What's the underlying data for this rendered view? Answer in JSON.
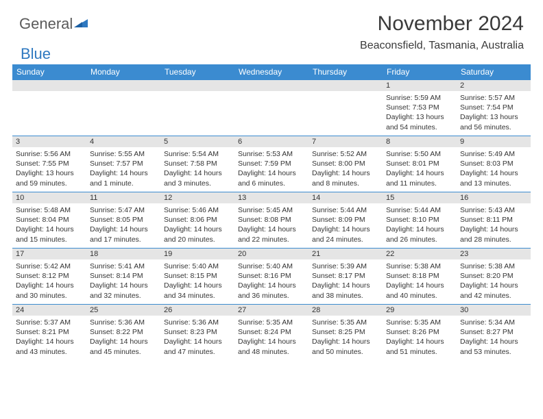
{
  "logo": {
    "text1": "General",
    "text2": "Blue"
  },
  "title": "November 2024",
  "location": "Beaconsfield, Tasmania, Australia",
  "colors": {
    "header_bg": "#3b8bd0",
    "header_text": "#ffffff",
    "daynum_bg": "#e5e5e5",
    "row_divider": "#3b8bd0",
    "body_text": "#333333",
    "logo_gray": "#5a5a5a",
    "logo_blue": "#2e78c0"
  },
  "fonts": {
    "title_size": 30,
    "location_size": 16,
    "header_size": 12,
    "daynum_size": 11,
    "body_size": 10.5
  },
  "weekdays": [
    "Sunday",
    "Monday",
    "Tuesday",
    "Wednesday",
    "Thursday",
    "Friday",
    "Saturday"
  ],
  "weeks": [
    [
      null,
      null,
      null,
      null,
      null,
      {
        "n": "1",
        "sunrise": "Sunrise: 5:59 AM",
        "sunset": "Sunset: 7:53 PM",
        "daylight": "Daylight: 13 hours and 54 minutes."
      },
      {
        "n": "2",
        "sunrise": "Sunrise: 5:57 AM",
        "sunset": "Sunset: 7:54 PM",
        "daylight": "Daylight: 13 hours and 56 minutes."
      }
    ],
    [
      {
        "n": "3",
        "sunrise": "Sunrise: 5:56 AM",
        "sunset": "Sunset: 7:55 PM",
        "daylight": "Daylight: 13 hours and 59 minutes."
      },
      {
        "n": "4",
        "sunrise": "Sunrise: 5:55 AM",
        "sunset": "Sunset: 7:57 PM",
        "daylight": "Daylight: 14 hours and 1 minute."
      },
      {
        "n": "5",
        "sunrise": "Sunrise: 5:54 AM",
        "sunset": "Sunset: 7:58 PM",
        "daylight": "Daylight: 14 hours and 3 minutes."
      },
      {
        "n": "6",
        "sunrise": "Sunrise: 5:53 AM",
        "sunset": "Sunset: 7:59 PM",
        "daylight": "Daylight: 14 hours and 6 minutes."
      },
      {
        "n": "7",
        "sunrise": "Sunrise: 5:52 AM",
        "sunset": "Sunset: 8:00 PM",
        "daylight": "Daylight: 14 hours and 8 minutes."
      },
      {
        "n": "8",
        "sunrise": "Sunrise: 5:50 AM",
        "sunset": "Sunset: 8:01 PM",
        "daylight": "Daylight: 14 hours and 11 minutes."
      },
      {
        "n": "9",
        "sunrise": "Sunrise: 5:49 AM",
        "sunset": "Sunset: 8:03 PM",
        "daylight": "Daylight: 14 hours and 13 minutes."
      }
    ],
    [
      {
        "n": "10",
        "sunrise": "Sunrise: 5:48 AM",
        "sunset": "Sunset: 8:04 PM",
        "daylight": "Daylight: 14 hours and 15 minutes."
      },
      {
        "n": "11",
        "sunrise": "Sunrise: 5:47 AM",
        "sunset": "Sunset: 8:05 PM",
        "daylight": "Daylight: 14 hours and 17 minutes."
      },
      {
        "n": "12",
        "sunrise": "Sunrise: 5:46 AM",
        "sunset": "Sunset: 8:06 PM",
        "daylight": "Daylight: 14 hours and 20 minutes."
      },
      {
        "n": "13",
        "sunrise": "Sunrise: 5:45 AM",
        "sunset": "Sunset: 8:08 PM",
        "daylight": "Daylight: 14 hours and 22 minutes."
      },
      {
        "n": "14",
        "sunrise": "Sunrise: 5:44 AM",
        "sunset": "Sunset: 8:09 PM",
        "daylight": "Daylight: 14 hours and 24 minutes."
      },
      {
        "n": "15",
        "sunrise": "Sunrise: 5:44 AM",
        "sunset": "Sunset: 8:10 PM",
        "daylight": "Daylight: 14 hours and 26 minutes."
      },
      {
        "n": "16",
        "sunrise": "Sunrise: 5:43 AM",
        "sunset": "Sunset: 8:11 PM",
        "daylight": "Daylight: 14 hours and 28 minutes."
      }
    ],
    [
      {
        "n": "17",
        "sunrise": "Sunrise: 5:42 AM",
        "sunset": "Sunset: 8:12 PM",
        "daylight": "Daylight: 14 hours and 30 minutes."
      },
      {
        "n": "18",
        "sunrise": "Sunrise: 5:41 AM",
        "sunset": "Sunset: 8:14 PM",
        "daylight": "Daylight: 14 hours and 32 minutes."
      },
      {
        "n": "19",
        "sunrise": "Sunrise: 5:40 AM",
        "sunset": "Sunset: 8:15 PM",
        "daylight": "Daylight: 14 hours and 34 minutes."
      },
      {
        "n": "20",
        "sunrise": "Sunrise: 5:40 AM",
        "sunset": "Sunset: 8:16 PM",
        "daylight": "Daylight: 14 hours and 36 minutes."
      },
      {
        "n": "21",
        "sunrise": "Sunrise: 5:39 AM",
        "sunset": "Sunset: 8:17 PM",
        "daylight": "Daylight: 14 hours and 38 minutes."
      },
      {
        "n": "22",
        "sunrise": "Sunrise: 5:38 AM",
        "sunset": "Sunset: 8:18 PM",
        "daylight": "Daylight: 14 hours and 40 minutes."
      },
      {
        "n": "23",
        "sunrise": "Sunrise: 5:38 AM",
        "sunset": "Sunset: 8:20 PM",
        "daylight": "Daylight: 14 hours and 42 minutes."
      }
    ],
    [
      {
        "n": "24",
        "sunrise": "Sunrise: 5:37 AM",
        "sunset": "Sunset: 8:21 PM",
        "daylight": "Daylight: 14 hours and 43 minutes."
      },
      {
        "n": "25",
        "sunrise": "Sunrise: 5:36 AM",
        "sunset": "Sunset: 8:22 PM",
        "daylight": "Daylight: 14 hours and 45 minutes."
      },
      {
        "n": "26",
        "sunrise": "Sunrise: 5:36 AM",
        "sunset": "Sunset: 8:23 PM",
        "daylight": "Daylight: 14 hours and 47 minutes."
      },
      {
        "n": "27",
        "sunrise": "Sunrise: 5:35 AM",
        "sunset": "Sunset: 8:24 PM",
        "daylight": "Daylight: 14 hours and 48 minutes."
      },
      {
        "n": "28",
        "sunrise": "Sunrise: 5:35 AM",
        "sunset": "Sunset: 8:25 PM",
        "daylight": "Daylight: 14 hours and 50 minutes."
      },
      {
        "n": "29",
        "sunrise": "Sunrise: 5:35 AM",
        "sunset": "Sunset: 8:26 PM",
        "daylight": "Daylight: 14 hours and 51 minutes."
      },
      {
        "n": "30",
        "sunrise": "Sunrise: 5:34 AM",
        "sunset": "Sunset: 8:27 PM",
        "daylight": "Daylight: 14 hours and 53 minutes."
      }
    ]
  ]
}
